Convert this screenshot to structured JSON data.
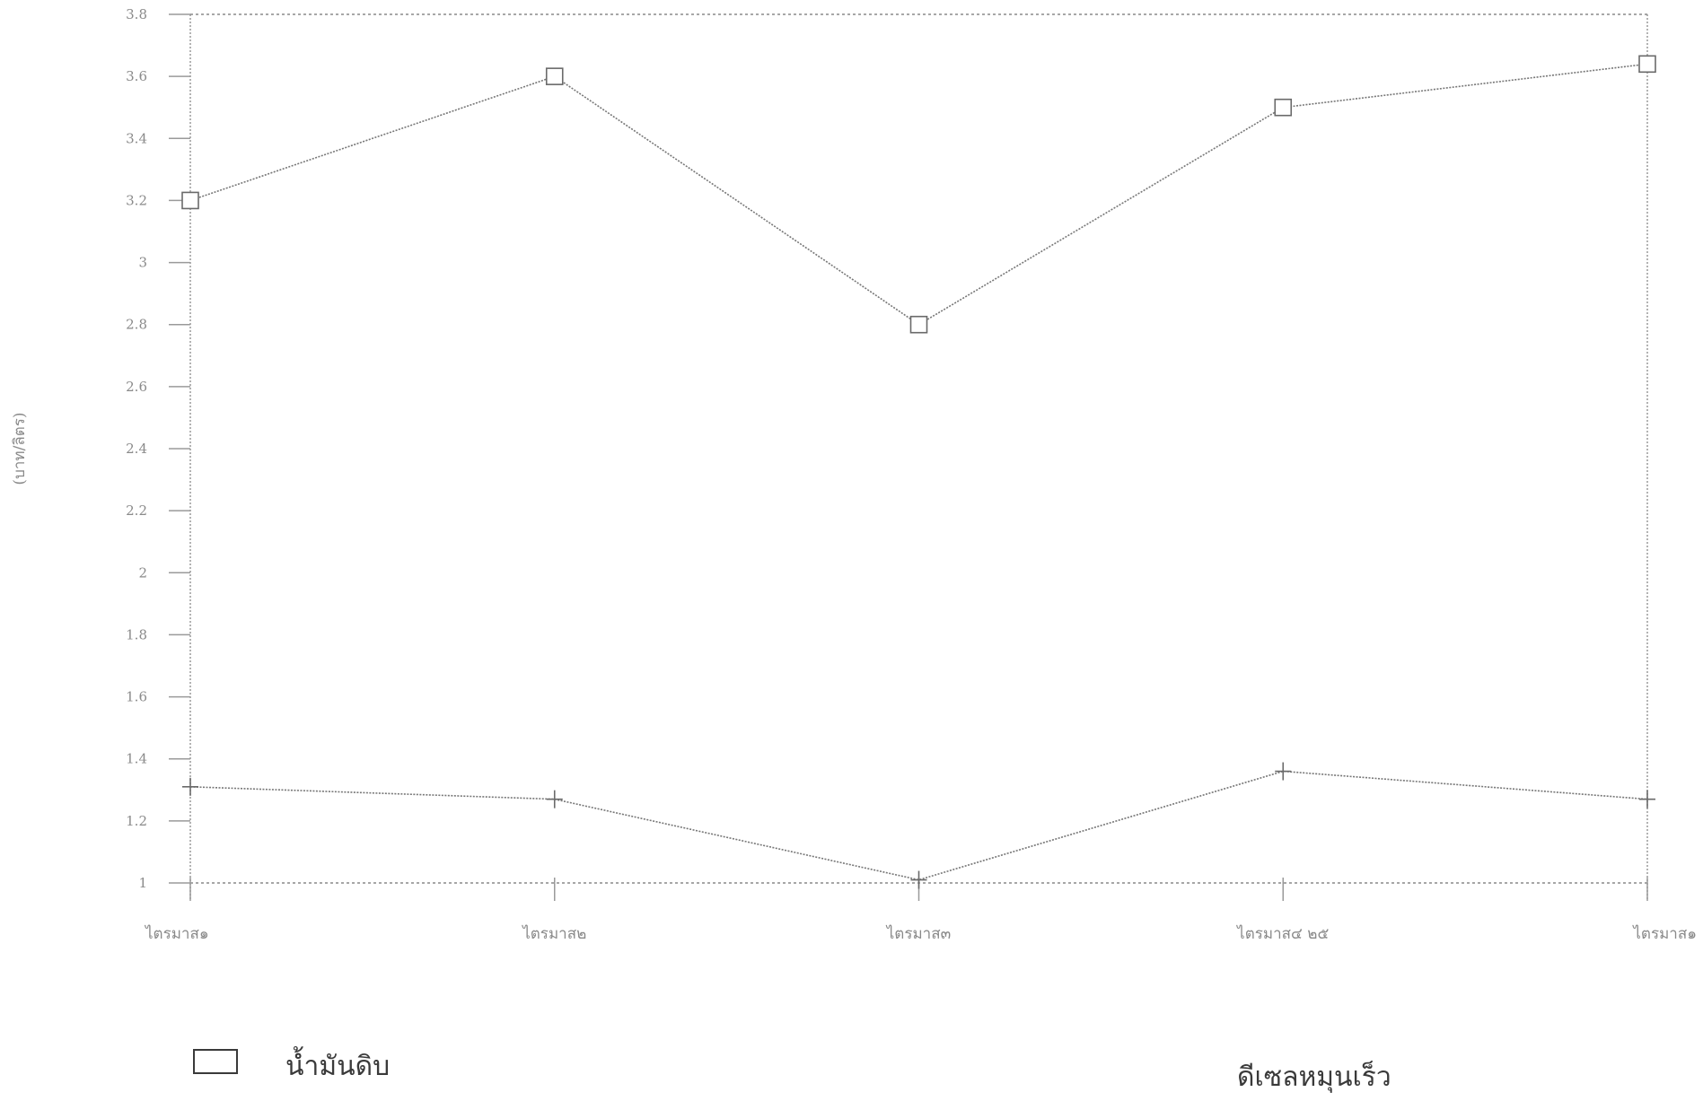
{
  "chart_data": {
    "type": "line",
    "categories": [
      "ไตรมาส๑",
      "ไตรมาส๒",
      "ไตรมาส๓",
      "ไตรมาส๔ ๒๕",
      "ไตรมาส๑"
    ],
    "series": [
      {
        "name": "น้ำมันดิบ",
        "marker": "square",
        "values": [
          3.2,
          3.6,
          2.8,
          3.5,
          3.64
        ]
      },
      {
        "name": "ดีเซลหมุนเร็ว",
        "marker": "plus",
        "values": [
          1.31,
          1.27,
          1.01,
          1.36,
          1.27
        ]
      }
    ],
    "reference_lines": [
      1.0,
      3.8
    ],
    "ylabel": "(บาท/ลิตร)",
    "xlabel": "",
    "ylim": [
      1.0,
      3.8
    ],
    "yticks": [
      "1",
      "1.2",
      "1.4",
      "1.6",
      "1.8",
      "2",
      "2.2",
      "2.4",
      "2.6",
      "2.8",
      "3",
      "3.2",
      "3.4",
      "3.6",
      "3.8"
    ],
    "ytick_values": [
      1.0,
      1.2,
      1.4,
      1.6,
      1.8,
      2.0,
      2.2,
      2.4,
      2.6,
      2.8,
      3.0,
      3.2,
      3.4,
      3.6,
      3.8
    ],
    "grid": false,
    "legend_position": "bottom"
  },
  "legend": {
    "item1_label": "น้ำมันดิบ",
    "item2_label": "ดีเซลหมุนเร็ว"
  },
  "colors": {
    "line": "#777777",
    "text": "#8a8a8a",
    "legend_text": "#3a3a3a"
  }
}
